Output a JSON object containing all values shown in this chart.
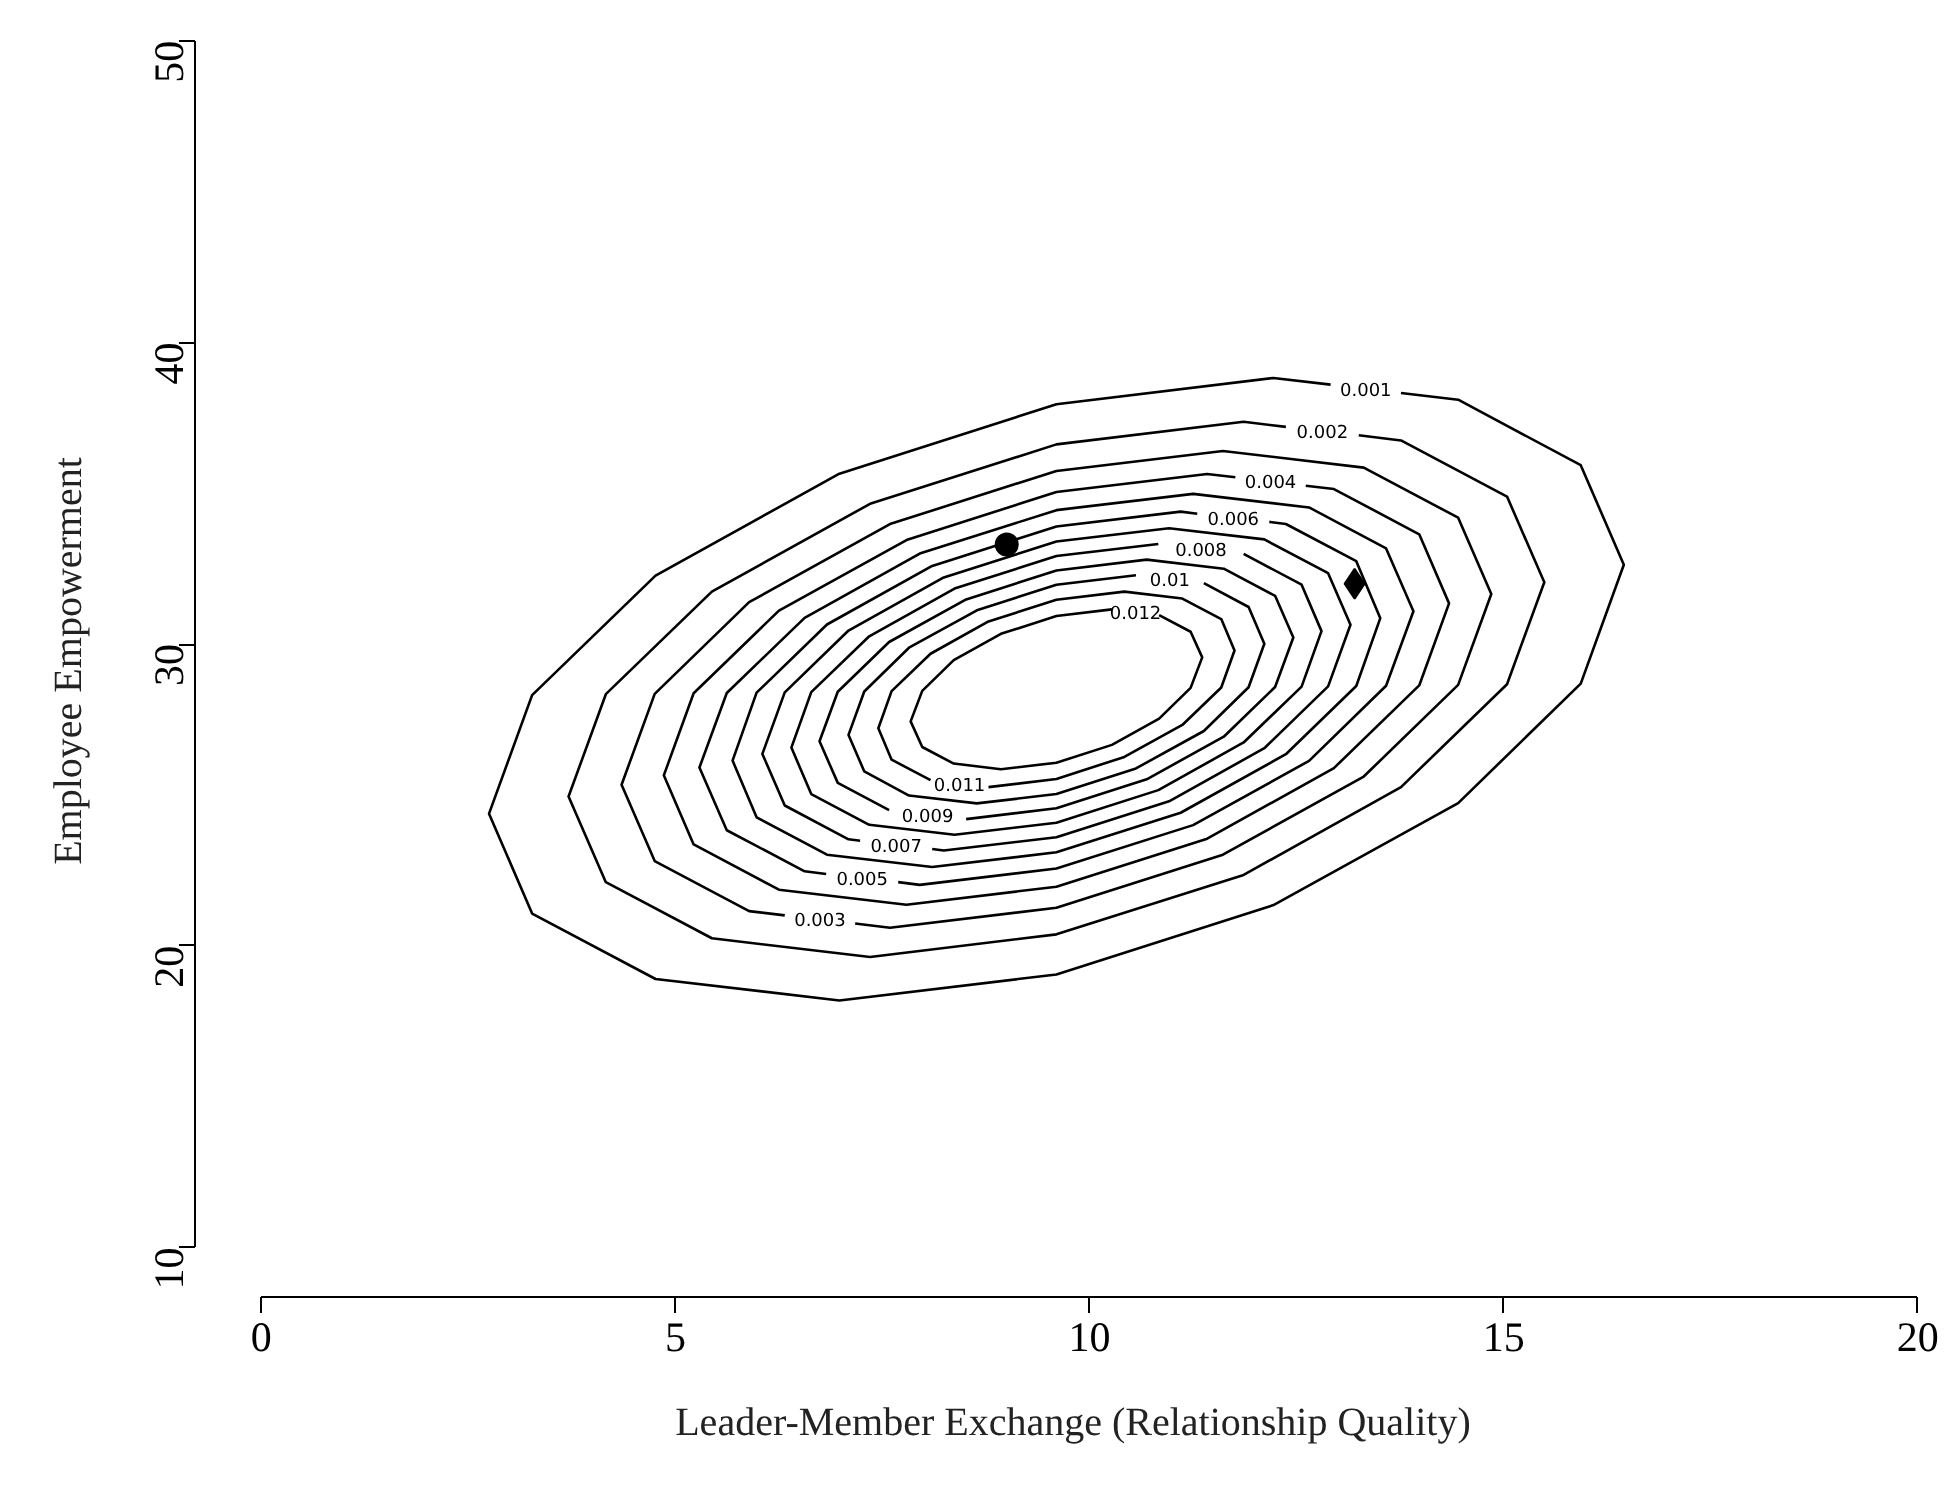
{
  "chart_data": {
    "type": "line",
    "xlabel": "Leader-Member Exchange (Relationship Quality)",
    "ylabel": "Employee Empowerment",
    "xlim": [
      0,
      20
    ],
    "ylim": [
      10,
      50
    ],
    "xticks": [
      0,
      5,
      10,
      15,
      20
    ],
    "yticks": [
      10,
      20,
      30,
      40,
      50
    ],
    "grid": false,
    "legend": false,
    "line_style": "solid",
    "series": [
      {
        "name": "0.001",
        "color": "#000000",
        "x": [
          12.91,
          12.22,
          9.6,
          6.98,
          4.76,
          3.27,
          2.75,
          3.27,
          4.76,
          6.98,
          9.6,
          12.22,
          14.45,
          15.93,
          16.45,
          15.93,
          14.45,
          13.76
        ],
        "values": [
          38.6,
          38.82,
          37.95,
          35.65,
          32.27,
          28.31,
          24.38,
          21.07,
          18.9,
          18.19,
          19.05,
          21.35,
          24.73,
          28.69,
          32.63,
          35.93,
          38.1,
          38.32
        ]
      },
      {
        "name": "0.002",
        "color": "#000000",
        "x": [
          12.37,
          11.86,
          9.6,
          7.35,
          5.44,
          4.16,
          3.71,
          4.16,
          5.44,
          7.35,
          9.6,
          11.86,
          13.76,
          15.04,
          15.49,
          15.04,
          13.76,
          13.25
        ],
        "values": [
          37.2,
          37.37,
          36.62,
          34.65,
          31.74,
          28.34,
          24.95,
          22.11,
          20.25,
          19.63,
          20.38,
          22.35,
          25.26,
          28.67,
          32.05,
          34.89,
          36.75,
          36.92
        ]
      },
      {
        "name": "0.003",
        "color": "#000000",
        "x": [
          7.17,
          7.59,
          9.6,
          11.61,
          13.31,
          14.45,
          14.85,
          14.45,
          13.31,
          11.61,
          9.6,
          7.59,
          5.89,
          4.75,
          4.35,
          4.75,
          5.89,
          6.32
        ],
        "values": [
          20.74,
          20.6,
          21.26,
          23.02,
          25.61,
          28.65,
          31.66,
          34.19,
          35.85,
          36.4,
          35.74,
          33.98,
          31.39,
          28.35,
          25.34,
          22.81,
          21.15,
          21.01
        ]
      },
      {
        "name": "0.004",
        "color": "#000000",
        "x": [
          11.76,
          11.42,
          9.6,
          7.79,
          6.25,
          5.22,
          4.86,
          5.22,
          6.25,
          7.79,
          9.6,
          11.42,
          12.95,
          13.98,
          14.34,
          13.98,
          12.95,
          12.61
        ],
        "values": [
          35.53,
          35.64,
          35.04,
          33.45,
          31.11,
          28.37,
          25.65,
          23.36,
          21.86,
          21.36,
          21.96,
          23.55,
          25.89,
          28.63,
          31.35,
          33.64,
          35.14,
          35.25
        ]
      },
      {
        "name": "0.005",
        "color": "#000000",
        "x": [
          7.69,
          7.95,
          9.6,
          11.25,
          12.65,
          13.58,
          13.91,
          13.58,
          12.65,
          11.25,
          9.6,
          7.95,
          6.56,
          5.62,
          5.29,
          5.62,
          6.56,
          6.82
        ],
        "values": [
          22.11,
          22.02,
          22.56,
          24.0,
          26.13,
          28.62,
          31.09,
          33.17,
          34.53,
          34.98,
          34.44,
          33.0,
          30.87,
          28.38,
          25.91,
          23.83,
          22.47,
          22.38
        ]
      },
      {
        "name": "0.006",
        "color": "#000000",
        "x": [
          11.3,
          11.1,
          9.6,
          8.1,
          6.83,
          5.98,
          5.69,
          5.98,
          6.83,
          8.1,
          9.6,
          11.1,
          12.37,
          13.22,
          13.51,
          13.22,
          12.37,
          12.17
        ],
        "values": [
          34.32,
          34.39,
          33.9,
          32.59,
          30.65,
          28.39,
          26.14,
          24.26,
          23.02,
          22.61,
          23.1,
          24.41,
          26.35,
          28.61,
          30.86,
          32.75,
          33.98,
          34.05
        ]
      },
      {
        "name": "0.007",
        "color": "#000000",
        "x": [
          8.1,
          8.24,
          9.6,
          10.96,
          12.11,
          12.88,
          13.15,
          12.88,
          12.11,
          10.96,
          9.6,
          8.24,
          7.09,
          6.32,
          6.05,
          6.32,
          7.09,
          7.23
        ],
        "values": [
          23.21,
          23.16,
          23.6,
          24.79,
          26.55,
          28.6,
          30.64,
          32.35,
          33.47,
          33.84,
          33.4,
          32.21,
          30.45,
          28.4,
          26.36,
          24.65,
          23.53,
          23.48
        ]
      },
      {
        "name": "0.008",
        "color": "#000000",
        "x": [
          10.83,
          9.6,
          8.37,
          7.34,
          6.64,
          6.4,
          6.64,
          7.34,
          8.37,
          9.6,
          10.83,
          11.86,
          12.56,
          12.8,
          12.56,
          11.86
        ],
        "values": [
          33.32,
          32.92,
          31.84,
          30.26,
          28.41,
          26.57,
          25.03,
          24.01,
          23.68,
          24.08,
          25.16,
          26.74,
          28.59,
          30.43,
          31.97,
          32.99
        ]
      },
      {
        "name": "0.009",
        "color": "#000000",
        "x": [
          8.51,
          9.6,
          10.69,
          11.62,
          12.24,
          12.46,
          12.24,
          11.62,
          10.69,
          9.6,
          8.51,
          7.58,
          6.96,
          6.74,
          6.96,
          7.58
        ],
        "values": [
          24.2,
          24.56,
          25.52,
          26.93,
          28.58,
          30.22,
          31.6,
          32.5,
          32.8,
          32.44,
          31.48,
          30.07,
          28.42,
          26.78,
          25.4,
          24.5
        ]
      },
      {
        "name": "0.01",
        "color": "#000000",
        "x": [
          10.56,
          9.6,
          8.64,
          7.82,
          7.28,
          7.09,
          7.28,
          7.82,
          8.64,
          9.6,
          10.56,
          11.38,
          11.92,
          12.11,
          11.92,
          11.38
        ],
        "values": [
          32.28,
          31.97,
          31.12,
          29.88,
          28.43,
          26.99,
          25.78,
          24.98,
          24.72,
          25.03,
          25.88,
          27.12,
          28.57,
          30.01,
          31.23,
          32.02
        ]
      },
      {
        "name": "0.011",
        "color": "#000000",
        "x": [
          8.78,
          9.6,
          10.42,
          11.12,
          11.59,
          11.75,
          11.59,
          11.12,
          10.42,
          9.6,
          8.78,
          8.08,
          7.61,
          7.45,
          7.61,
          8.08
        ],
        "values": [
          25.26,
          25.53,
          26.26,
          27.32,
          28.56,
          29.79,
          30.83,
          31.51,
          31.74,
          31.47,
          30.75,
          29.68,
          28.44,
          27.21,
          26.17,
          25.49
        ]
      },
      {
        "name": "0.012",
        "color": "#000000",
        "x": [
          10.27,
          9.6,
          8.93,
          8.36,
          7.98,
          7.84,
          7.98,
          8.36,
          8.93,
          9.6,
          10.27,
          10.84,
          11.22,
          11.36,
          11.22,
          10.84
        ],
        "values": [
          31.15,
          30.93,
          30.34,
          29.47,
          28.45,
          27.44,
          26.59,
          26.04,
          25.85,
          26.07,
          26.66,
          27.53,
          28.55,
          29.56,
          30.41,
          30.96
        ]
      },
      {
        "type": "scatter",
        "marker": "circle",
        "color": "#000000",
        "x": [
          9.0
        ],
        "values": [
          33.3
        ]
      },
      {
        "type": "scatter",
        "marker": "diamond",
        "color": "#000000",
        "x": [
          13.2
        ],
        "values": [
          32.0
        ]
      }
    ]
  }
}
